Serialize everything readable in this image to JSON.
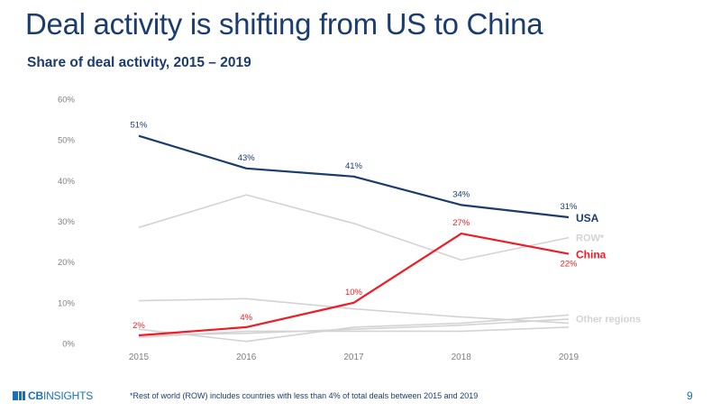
{
  "title": "Deal activity is shifting from US to China",
  "subtitle": "Share of deal activity, 2015 – 2019",
  "footer": {
    "logo_cb": "CB",
    "logo_insights": "INSIGHTS",
    "footnote": "*Rest of world (ROW) includes countries with less than 4% of total deals between 2015 and 2019",
    "page_number": "9"
  },
  "colors": {
    "usa": "#1b3c6f",
    "china": "#ee1c25",
    "other": "#d3d3d3",
    "axis_text": "#7f7f7f",
    "brand": "#1b6fb8"
  },
  "chart_data": {
    "type": "line",
    "x": [
      "2015",
      "2016",
      "2017",
      "2018",
      "2019"
    ],
    "ylim": [
      0,
      60
    ],
    "yticks": [
      0,
      10,
      20,
      30,
      40,
      50,
      60
    ],
    "ytick_labels": [
      "0%",
      "10%",
      "20%",
      "30%",
      "40%",
      "50%",
      "60%"
    ],
    "grid": false,
    "series": [
      {
        "name": "USA",
        "role": "highlight",
        "color": "#1b3c6f",
        "values": [
          51,
          43,
          41,
          34,
          31
        ],
        "data_labels": [
          "51%",
          "43%",
          "41%",
          "34%",
          "31%"
        ]
      },
      {
        "name": "China",
        "role": "highlight",
        "color": "#ee1c25",
        "values": [
          2,
          4,
          10,
          27,
          22
        ],
        "data_labels": [
          "2%",
          "4%",
          "10%",
          "27%",
          "22%"
        ]
      },
      {
        "name": "ROW*",
        "role": "muted",
        "color": "#d3d3d3",
        "values": [
          28.5,
          36.5,
          29.5,
          20.5,
          26
        ]
      },
      {
        "name": "Other regions",
        "role": "muted",
        "color": "#d3d3d3",
        "values": [
          10.5,
          11,
          8.5,
          6.5,
          5
        ]
      },
      {
        "name": "",
        "role": "muted",
        "color": "#d3d3d3",
        "values": [
          3.5,
          0.5,
          4,
          5,
          7
        ]
      },
      {
        "name": "",
        "role": "muted",
        "color": "#d3d3d3",
        "values": [
          2,
          2.5,
          3.5,
          4.5,
          6
        ]
      },
      {
        "name": "",
        "role": "muted",
        "color": "#d3d3d3",
        "values": [
          1.5,
          3,
          3,
          3,
          4
        ]
      }
    ]
  }
}
